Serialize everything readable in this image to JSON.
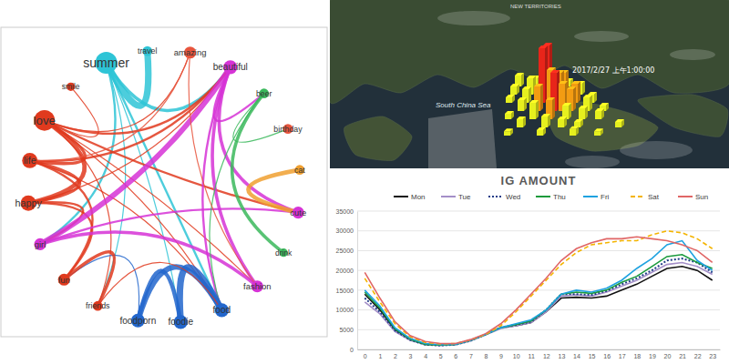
{
  "network": {
    "nodes": [
      {
        "label": "summer",
        "color": "#2ec4d6",
        "size": 10
      },
      {
        "label": "travel",
        "color": "#2ec4d6",
        "size": 2
      },
      {
        "label": "amazing",
        "color": "#e8553d",
        "size": 3
      },
      {
        "label": "beautiful",
        "color": "#d633d6",
        "size": 4
      },
      {
        "label": "beer",
        "color": "#3bb85c",
        "size": 2
      },
      {
        "label": "birthday",
        "color": "#e8553d",
        "size": 2
      },
      {
        "label": "cat",
        "color": "#f0a030",
        "size": 2
      },
      {
        "label": "cute",
        "color": "#d633d6",
        "size": 3
      },
      {
        "label": "drink",
        "color": "#3bb85c",
        "size": 1.5
      },
      {
        "label": "fashion",
        "color": "#d633d6",
        "size": 3
      },
      {
        "label": "food",
        "color": "#2266cc",
        "size": 4
      },
      {
        "label": "foodie",
        "color": "#2266cc",
        "size": 4
      },
      {
        "label": "foodporn",
        "color": "#2266cc",
        "size": 4
      },
      {
        "label": "friends",
        "color": "#e03a1e",
        "size": 2
      },
      {
        "label": "fun",
        "color": "#e03a1e",
        "size": 3
      },
      {
        "label": "girl",
        "color": "#d633d6",
        "size": 3
      },
      {
        "label": "happy",
        "color": "#e03a1e",
        "size": 5
      },
      {
        "label": "life",
        "color": "#e03a1e",
        "size": 5
      },
      {
        "label": "love",
        "color": "#e03a1e",
        "size": 9
      },
      {
        "label": "smile",
        "color": "#e03a1e",
        "size": 1.5
      }
    ],
    "edges": [
      {
        "source": 0,
        "target": 1,
        "weight": 6
      },
      {
        "source": 0,
        "target": 3,
        "weight": 3
      },
      {
        "source": 0,
        "target": 10,
        "weight": 2
      },
      {
        "source": 0,
        "target": 11,
        "weight": 1
      },
      {
        "source": 0,
        "target": 13,
        "weight": 1
      },
      {
        "source": 0,
        "target": 15,
        "weight": 2
      },
      {
        "source": 18,
        "target": 3,
        "weight": 2
      },
      {
        "source": 18,
        "target": 17,
        "weight": 3
      },
      {
        "source": 18,
        "target": 16,
        "weight": 4
      },
      {
        "source": 18,
        "target": 7,
        "weight": 2
      },
      {
        "source": 18,
        "target": 19,
        "weight": 1
      },
      {
        "source": 18,
        "target": 10,
        "weight": 1
      },
      {
        "source": 18,
        "target": 13,
        "weight": 1
      },
      {
        "source": 18,
        "target": 9,
        "weight": 1
      },
      {
        "source": 18,
        "target": 2,
        "weight": 1
      },
      {
        "source": 17,
        "target": 16,
        "weight": 3
      },
      {
        "source": 17,
        "target": 3,
        "weight": 2
      },
      {
        "source": 17,
        "target": 14,
        "weight": 2
      },
      {
        "source": 17,
        "target": 10,
        "weight": 1
      },
      {
        "source": 16,
        "target": 15,
        "weight": 2
      },
      {
        "source": 16,
        "target": 14,
        "weight": 2
      },
      {
        "source": 16,
        "target": 3,
        "weight": 1
      },
      {
        "source": 3,
        "target": 15,
        "weight": 5
      },
      {
        "source": 3,
        "target": 7,
        "weight": 3
      },
      {
        "source": 3,
        "target": 9,
        "weight": 3
      },
      {
        "source": 3,
        "target": 10,
        "weight": 2
      },
      {
        "source": 3,
        "target": 4,
        "weight": 2
      },
      {
        "source": 15,
        "target": 9,
        "weight": 3
      },
      {
        "source": 15,
        "target": 7,
        "weight": 2
      },
      {
        "source": 4,
        "target": 8,
        "weight": 3
      },
      {
        "source": 4,
        "target": 5,
        "weight": 1
      },
      {
        "source": 4,
        "target": 10,
        "weight": 1
      },
      {
        "source": 6,
        "target": 7,
        "weight": 4
      },
      {
        "source": 10,
        "target": 11,
        "weight": 6
      },
      {
        "source": 10,
        "target": 12,
        "weight": 5
      },
      {
        "source": 11,
        "target": 12,
        "weight": 4
      },
      {
        "source": 12,
        "target": 14,
        "weight": 1
      },
      {
        "source": 13,
        "target": 14,
        "weight": 3
      },
      {
        "source": 13,
        "target": 10,
        "weight": 1
      },
      {
        "source": 2,
        "target": 17,
        "weight": 1
      },
      {
        "source": 2,
        "target": 9,
        "weight": 1
      }
    ]
  },
  "map": {
    "region_label": "NEW TERRITORIES",
    "sea_label": "South China Sea",
    "timestamp": "2017/2/27 上午1:00:00",
    "cells": [
      {
        "col": 5,
        "row": 0,
        "value": 20
      },
      {
        "col": 7,
        "row": 0,
        "value": 15
      },
      {
        "col": 9,
        "row": 0,
        "value": 25
      },
      {
        "col": 11,
        "row": 0,
        "value": 10
      },
      {
        "col": 4,
        "row": 1,
        "value": 15
      },
      {
        "col": 6,
        "row": 1,
        "value": 30
      },
      {
        "col": 8,
        "row": 1,
        "value": 90
      },
      {
        "col": 10,
        "row": 1,
        "value": 40
      },
      {
        "col": 12,
        "row": 1,
        "value": 20
      },
      {
        "col": 3,
        "row": 2,
        "value": 10
      },
      {
        "col": 5,
        "row": 2,
        "value": 25
      },
      {
        "col": 7,
        "row": 2,
        "value": 100
      },
      {
        "col": 8,
        "row": 2,
        "value": 60
      },
      {
        "col": 9,
        "row": 2,
        "value": 55
      },
      {
        "col": 11,
        "row": 2,
        "value": 35
      },
      {
        "col": 13,
        "row": 2,
        "value": 15
      },
      {
        "col": 4,
        "row": 3,
        "value": 20
      },
      {
        "col": 6,
        "row": 3,
        "value": 45
      },
      {
        "col": 8,
        "row": 3,
        "value": 70
      },
      {
        "col": 9,
        "row": 3,
        "value": 50
      },
      {
        "col": 10,
        "row": 3,
        "value": 40
      },
      {
        "col": 12,
        "row": 3,
        "value": 25
      },
      {
        "col": 14,
        "row": 3,
        "value": 10
      },
      {
        "col": 2,
        "row": 4,
        "value": 10
      },
      {
        "col": 5,
        "row": 4,
        "value": 30
      },
      {
        "col": 7,
        "row": 4,
        "value": 35
      },
      {
        "col": 9,
        "row": 4,
        "value": 25
      },
      {
        "col": 11,
        "row": 4,
        "value": 20
      },
      {
        "col": 13,
        "row": 4,
        "value": 15
      },
      {
        "col": 3,
        "row": 5,
        "value": 15
      },
      {
        "col": 6,
        "row": 5,
        "value": 20
      },
      {
        "col": 8,
        "row": 5,
        "value": 15
      },
      {
        "col": 10,
        "row": 5,
        "value": 10
      },
      {
        "col": 15,
        "row": 5,
        "value": 10
      },
      {
        "col": 1,
        "row": 6,
        "value": 8
      },
      {
        "col": 5,
        "row": 6,
        "value": 10
      },
      {
        "col": 9,
        "row": 6,
        "value": 12
      },
      {
        "col": 12,
        "row": 6,
        "value": 8
      }
    ]
  },
  "chart_data": {
    "type": "line",
    "title": "IG AMOUNT",
    "x": [
      0,
      1,
      2,
      3,
      4,
      5,
      6,
      7,
      8,
      9,
      10,
      11,
      12,
      13,
      14,
      15,
      16,
      17,
      18,
      19,
      20,
      21,
      22,
      23
    ],
    "xlim": [
      -0.5,
      23.5
    ],
    "xticks": [
      0,
      1,
      2,
      3,
      4,
      5,
      6,
      7,
      8,
      9,
      10,
      11,
      12,
      13,
      14,
      15,
      16,
      17,
      18,
      19,
      20,
      21,
      22,
      23
    ],
    "ylim": [
      0,
      35000
    ],
    "yticks": [
      0,
      5000,
      10000,
      15000,
      20000,
      25000,
      30000,
      35000
    ],
    "grid": true,
    "legend": "top",
    "series": [
      {
        "name": "Mon",
        "color": "#111111",
        "line_style": "solid",
        "values": [
          14000,
          10000,
          5000,
          2500,
          1300,
          1100,
          1300,
          2300,
          3800,
          5500,
          6000,
          6800,
          9500,
          13000,
          13200,
          13000,
          13500,
          15000,
          16500,
          18500,
          20500,
          21000,
          20000,
          17500
        ]
      },
      {
        "name": "Tue",
        "color": "#a48fc8",
        "line_style": "solid",
        "values": [
          12000,
          9000,
          4500,
          2300,
          1200,
          1000,
          1200,
          2200,
          3700,
          5300,
          6000,
          6800,
          9500,
          13500,
          13800,
          13500,
          14500,
          16000,
          17500,
          19500,
          21500,
          22000,
          21000,
          19000
        ]
      },
      {
        "name": "Wed",
        "color": "#1f3c88",
        "line_style": "dotted",
        "values": [
          13000,
          9500,
          4800,
          2400,
          1200,
          1000,
          1200,
          2200,
          3800,
          5600,
          6200,
          7000,
          10000,
          14000,
          14000,
          13800,
          14800,
          16500,
          18000,
          20000,
          22500,
          23000,
          22000,
          19500
        ]
      },
      {
        "name": "Thu",
        "color": "#1a9a3c",
        "line_style": "solid",
        "values": [
          14500,
          10500,
          5200,
          2600,
          1300,
          1100,
          1300,
          2300,
          3800,
          5500,
          6300,
          7200,
          10000,
          14000,
          14500,
          14200,
          15000,
          17000,
          18500,
          21000,
          23500,
          24000,
          22000,
          20500
        ]
      },
      {
        "name": "Fri",
        "color": "#1ea2e0",
        "line_style": "solid",
        "values": [
          15000,
          11000,
          5500,
          2800,
          1500,
          1200,
          1300,
          2300,
          3800,
          5500,
          6500,
          7500,
          10000,
          14000,
          15000,
          14500,
          15500,
          17500,
          20500,
          23000,
          26500,
          27500,
          22500,
          20000
        ]
      },
      {
        "name": "Sat",
        "color": "#f4b400",
        "line_style": "dashed",
        "values": [
          18000,
          12000,
          6500,
          3200,
          1800,
          1400,
          1500,
          2400,
          3800,
          6000,
          9500,
          13500,
          17500,
          21500,
          24500,
          26500,
          27000,
          27500,
          27500,
          29000,
          30000,
          29500,
          28000,
          25500
        ]
      },
      {
        "name": "Sun",
        "color": "#e06666",
        "line_style": "solid",
        "values": [
          19500,
          13000,
          7000,
          3500,
          2000,
          1500,
          1500,
          2500,
          4000,
          6500,
          10000,
          14000,
          18000,
          22500,
          25500,
          27000,
          28000,
          28000,
          28500,
          28000,
          27500,
          26500,
          25000,
          22000
        ]
      }
    ]
  }
}
